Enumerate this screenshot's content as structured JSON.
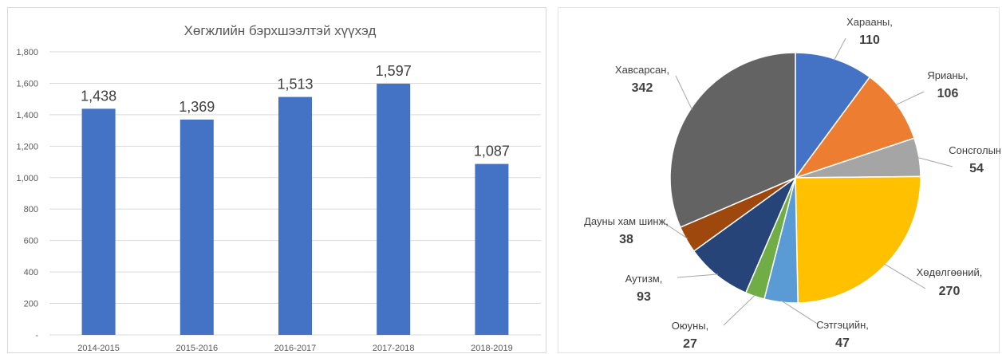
{
  "chart_data": [
    {
      "type": "bar",
      "title": "Хөгжлийн бэрхшээлтэй хүүхэд",
      "categories": [
        "2014-2015",
        "2015-2016",
        "2016-2017",
        "2017-2018",
        "2018-2019"
      ],
      "values": [
        1438,
        1369,
        1513,
        1597,
        1087
      ],
      "value_labels": [
        "1,438",
        "1,369",
        "1,513",
        "1,597",
        "1,087"
      ],
      "ylim": [
        0,
        1800
      ],
      "y_ticks": [
        "-",
        "200",
        "400",
        "600",
        "800",
        "1,000",
        "1,200",
        "1,400",
        "1,600",
        "1,800"
      ],
      "grid": true,
      "bar_color": "#4472C4",
      "grid_color": "#d9d9d9"
    },
    {
      "type": "pie",
      "slices": [
        {
          "label": "Харааны,",
          "value": 110,
          "color": "#4472C4"
        },
        {
          "label": "Ярианы,",
          "value": 106,
          "color": "#ED7D31"
        },
        {
          "label": "Сонсголын,",
          "value": 54,
          "color": "#A5A5A5"
        },
        {
          "label": "Хөдөлгөөний,",
          "value": 270,
          "color": "#FFC000"
        },
        {
          "label": "Сэтгэцийн,",
          "value": 47,
          "color": "#5B9BD5"
        },
        {
          "label": "Оюуны,",
          "value": 27,
          "color": "#70AD47"
        },
        {
          "label": "Аутизм,",
          "value": 93,
          "color": "#264478"
        },
        {
          "label": "Дауны хам шинж,",
          "value": 38,
          "color": "#9E480E"
        },
        {
          "label": "Хавсарсан,",
          "value": 342,
          "color": "#636363"
        }
      ]
    }
  ]
}
